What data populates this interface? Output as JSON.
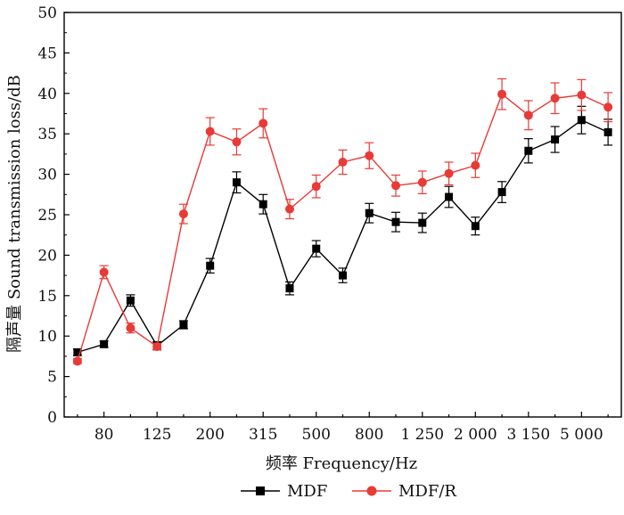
{
  "chart_data": {
    "type": "line",
    "title": "",
    "xlabel": "频率 Frequency/Hz",
    "ylabel": "隔声量 Sound transmission loss/dB",
    "ylim": [
      0,
      50
    ],
    "yticks": [
      "0",
      "5",
      "10",
      "15",
      "20",
      "25",
      "30",
      "35",
      "40",
      "45",
      "50"
    ],
    "x_index": [
      1,
      2,
      3,
      4,
      5,
      6,
      7,
      8,
      9,
      10,
      11,
      12,
      13,
      14,
      15,
      16,
      17,
      18,
      19,
      20,
      21
    ],
    "xtick_labels": [
      "80",
      "125",
      "200",
      "315",
      "500",
      "800",
      "1 250",
      "2 000",
      "3 150",
      "5 000"
    ],
    "grid": false,
    "legend_position": "bottom",
    "series": [
      {
        "name": "MDF",
        "color": "#000000",
        "marker": "square",
        "values": [
          8.0,
          9.0,
          14.4,
          8.8,
          11.4,
          18.7,
          29.0,
          26.3,
          15.9,
          20.8,
          17.5,
          25.2,
          24.1,
          24.0,
          27.2,
          23.6,
          27.8,
          32.9,
          34.3,
          36.7,
          35.2
        ],
        "errors": [
          0.4,
          0.4,
          0.7,
          0.5,
          0.5,
          0.9,
          1.3,
          1.2,
          0.8,
          1.0,
          0.9,
          1.2,
          1.2,
          1.2,
          1.3,
          1.1,
          1.3,
          1.5,
          1.6,
          1.7,
          1.6
        ]
      },
      {
        "name": "MDF/R",
        "color": "#e83a36",
        "marker": "circle",
        "values": [
          6.9,
          17.9,
          11.0,
          8.7,
          25.1,
          35.3,
          34.0,
          36.3,
          25.7,
          28.5,
          31.5,
          32.3,
          28.6,
          29.0,
          30.1,
          31.1,
          39.9,
          37.3,
          39.4,
          39.8,
          38.3
        ],
        "errors": [
          0.3,
          0.8,
          0.6,
          0.4,
          1.2,
          1.7,
          1.6,
          1.8,
          1.2,
          1.4,
          1.5,
          1.6,
          1.3,
          1.4,
          1.4,
          1.5,
          1.9,
          1.8,
          1.9,
          1.9,
          1.8
        ]
      }
    ]
  }
}
